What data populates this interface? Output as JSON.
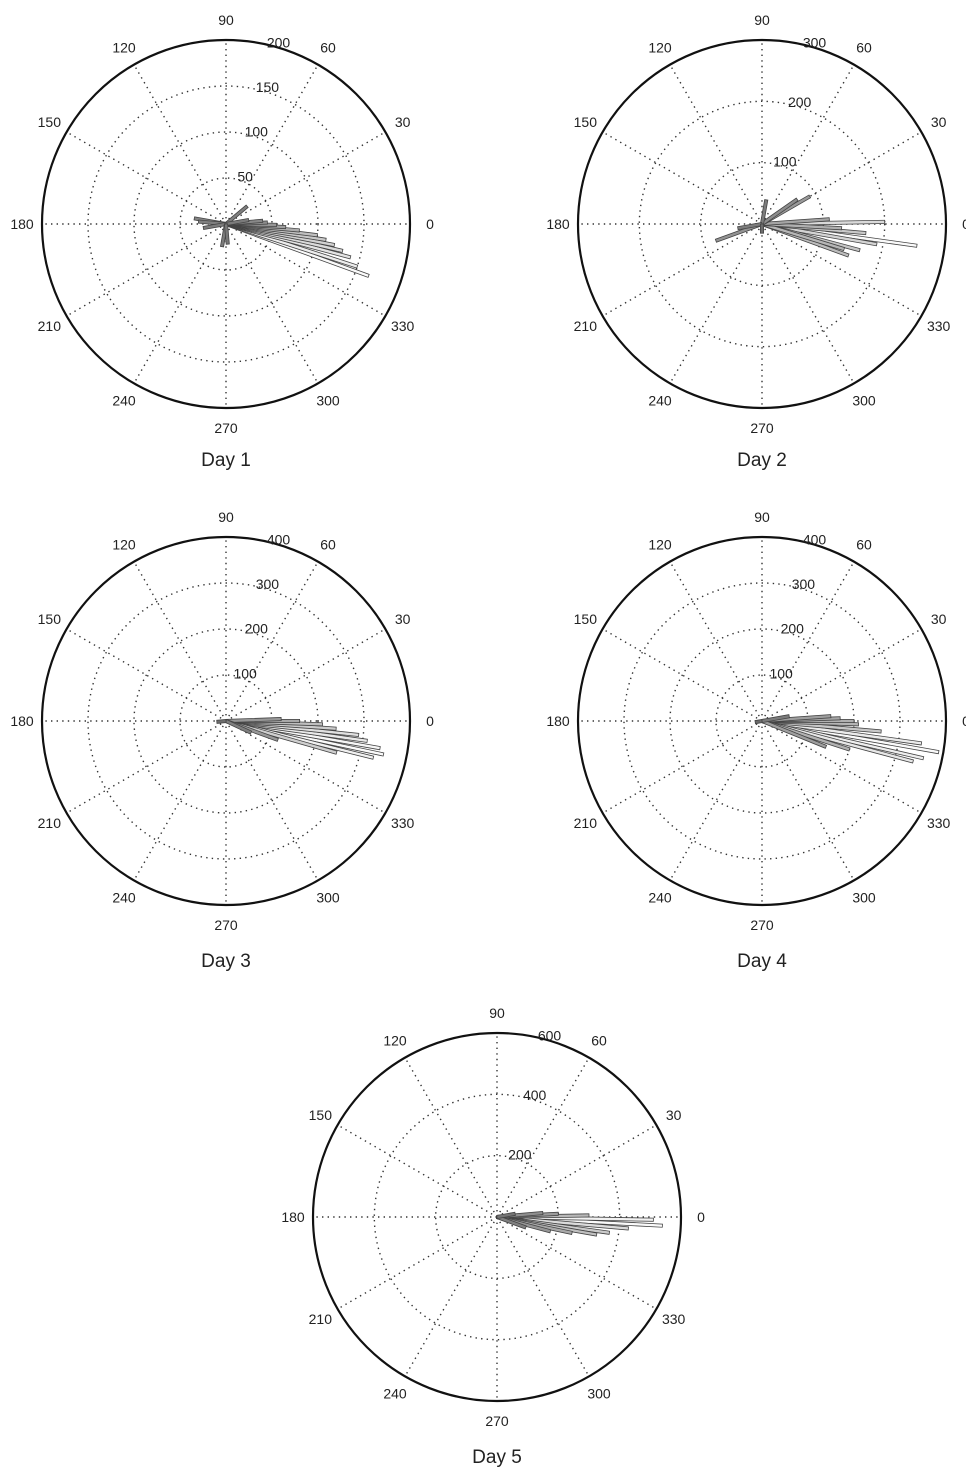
{
  "chart_data": [
    {
      "type": "polar-bar",
      "caption": "Day 1",
      "rmax": 200,
      "r_ticks": [
        50,
        100,
        150,
        200
      ],
      "angle_ticks": [
        0,
        30,
        60,
        90,
        120,
        150,
        180,
        210,
        240,
        270,
        300,
        330
      ],
      "bars": [
        {
          "angle": 340,
          "r": 165
        },
        {
          "angle": 342,
          "r": 150
        },
        {
          "angle": 345,
          "r": 140
        },
        {
          "angle": 347,
          "r": 130
        },
        {
          "angle": 349,
          "r": 120
        },
        {
          "angle": 351,
          "r": 110
        },
        {
          "angle": 353,
          "r": 100
        },
        {
          "angle": 355,
          "r": 80
        },
        {
          "angle": 357,
          "r": 65
        },
        {
          "angle": 359,
          "r": 55
        },
        {
          "angle": 2,
          "r": 45
        },
        {
          "angle": 5,
          "r": 40
        },
        {
          "angle": 10,
          "r": 25
        },
        {
          "angle": 40,
          "r": 30
        },
        {
          "angle": 170,
          "r": 35
        },
        {
          "angle": 175,
          "r": 30
        },
        {
          "angle": 190,
          "r": 25
        },
        {
          "angle": 260,
          "r": 25
        },
        {
          "angle": 275,
          "r": 22
        }
      ]
    },
    {
      "type": "polar-bar",
      "caption": "Day 2",
      "rmax": 300,
      "r_ticks": [
        100,
        200,
        300
      ],
      "angle_ticks": [
        0,
        30,
        60,
        90,
        120,
        150,
        180,
        210,
        240,
        270,
        300,
        330
      ],
      "bars": [
        {
          "angle": 352,
          "r": 255
        },
        {
          "angle": 345,
          "r": 165
        },
        {
          "angle": 350,
          "r": 190
        },
        {
          "angle": 355,
          "r": 170
        },
        {
          "angle": 357,
          "r": 130
        },
        {
          "angle": 1,
          "r": 200
        },
        {
          "angle": 4,
          "r": 110
        },
        {
          "angle": 340,
          "r": 150
        },
        {
          "angle": 343,
          "r": 140
        },
        {
          "angle": 30,
          "r": 90
        },
        {
          "angle": 35,
          "r": 70
        },
        {
          "angle": 80,
          "r": 40
        },
        {
          "angle": 200,
          "r": 80
        },
        {
          "angle": 190,
          "r": 40
        },
        {
          "angle": 270,
          "r": 15
        }
      ]
    },
    {
      "type": "polar-bar",
      "caption": "Day 3",
      "rmax": 400,
      "r_ticks": [
        100,
        200,
        300,
        400
      ],
      "angle_ticks": [
        0,
        30,
        60,
        90,
        120,
        150,
        180,
        210,
        240,
        270,
        300,
        330
      ],
      "bars": [
        {
          "angle": 348,
          "r": 350
        },
        {
          "angle": 350,
          "r": 340
        },
        {
          "angle": 352,
          "r": 310
        },
        {
          "angle": 354,
          "r": 290
        },
        {
          "angle": 356,
          "r": 240
        },
        {
          "angle": 358,
          "r": 210
        },
        {
          "angle": 0,
          "r": 160
        },
        {
          "angle": 2,
          "r": 120
        },
        {
          "angle": 346,
          "r": 330
        },
        {
          "angle": 344,
          "r": 250
        },
        {
          "angle": 340,
          "r": 120
        },
        {
          "angle": 335,
          "r": 60
        },
        {
          "angle": 185,
          "r": 20
        }
      ]
    },
    {
      "type": "polar-bar",
      "caption": "Day 4",
      "rmax": 400,
      "r_ticks": [
        100,
        200,
        300,
        400
      ],
      "angle_ticks": [
        0,
        30,
        60,
        90,
        120,
        150,
        180,
        210,
        240,
        270,
        300,
        330
      ],
      "bars": [
        {
          "angle": 350,
          "r": 390
        },
        {
          "angle": 352,
          "r": 350
        },
        {
          "angle": 347,
          "r": 360
        },
        {
          "angle": 345,
          "r": 340
        },
        {
          "angle": 355,
          "r": 260
        },
        {
          "angle": 358,
          "r": 210
        },
        {
          "angle": 0,
          "r": 200
        },
        {
          "angle": 2,
          "r": 170
        },
        {
          "angle": 4,
          "r": 150
        },
        {
          "angle": 342,
          "r": 200
        },
        {
          "angle": 338,
          "r": 150
        },
        {
          "angle": 10,
          "r": 60
        },
        {
          "angle": 190,
          "r": 15
        }
      ]
    },
    {
      "type": "polar-bar",
      "caption": "Day 5",
      "rmax": 600,
      "r_ticks": [
        200,
        400,
        600
      ],
      "angle_ticks": [
        0,
        30,
        60,
        90,
        120,
        150,
        180,
        210,
        240,
        270,
        300,
        330
      ],
      "bars": [
        {
          "angle": 357,
          "r": 540
        },
        {
          "angle": 359,
          "r": 510
        },
        {
          "angle": 355,
          "r": 430
        },
        {
          "angle": 352,
          "r": 370
        },
        {
          "angle": 350,
          "r": 330
        },
        {
          "angle": 348,
          "r": 250
        },
        {
          "angle": 1,
          "r": 300
        },
        {
          "angle": 3,
          "r": 200
        },
        {
          "angle": 5,
          "r": 150
        },
        {
          "angle": 345,
          "r": 180
        },
        {
          "angle": 340,
          "r": 100
        },
        {
          "angle": 10,
          "r": 60
        }
      ]
    }
  ]
}
